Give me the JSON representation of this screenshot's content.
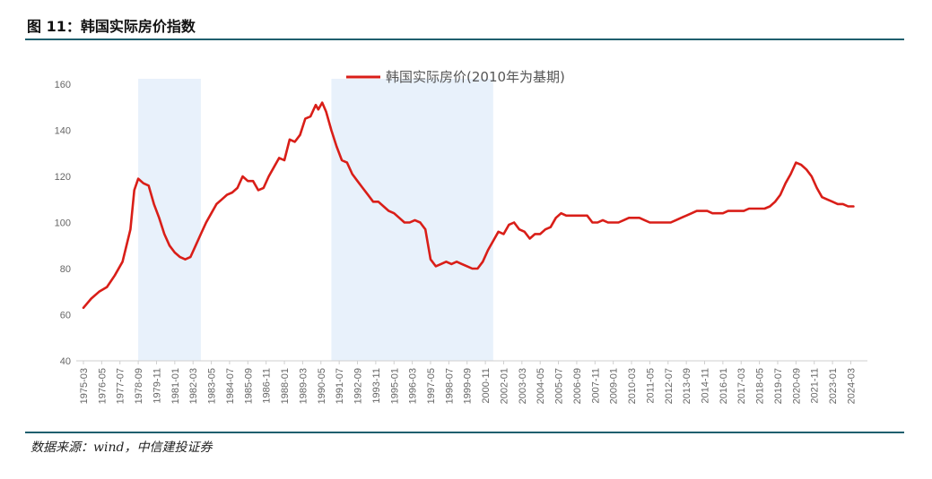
{
  "header": {
    "title": "图 11：韩国实际房价指数"
  },
  "footer": {
    "source": "数据来源：wind，中信建投证券"
  },
  "colors": {
    "line": "#d91e18",
    "band": "#e8f1fb",
    "rule": "#1f5f6e",
    "grid": "#e3e3e3"
  },
  "chart_data": {
    "type": "line",
    "title": "",
    "xlabel": "",
    "ylabel": "",
    "ylim": [
      40,
      160
    ],
    "yticks": [
      40,
      60,
      80,
      100,
      120,
      140,
      160
    ],
    "xlim": [
      "1975-03",
      "2025-01"
    ],
    "xticks": [
      "1975-03",
      "1976-05",
      "1977-07",
      "1978-09",
      "1979-11",
      "1981-01",
      "1982-03",
      "1983-05",
      "1984-07",
      "1985-09",
      "1986-11",
      "1988-01",
      "1989-03",
      "1990-05",
      "1991-07",
      "1992-09",
      "1993-11",
      "1995-01",
      "1996-03",
      "1997-05",
      "1998-07",
      "1999-09",
      "2000-11",
      "2002-01",
      "2003-03",
      "2004-05",
      "2005-07",
      "2006-09",
      "2007-11",
      "2009-01",
      "2010-03",
      "2011-05",
      "2012-07",
      "2013-09",
      "2014-11",
      "2016-01",
      "2017-03",
      "2018-05",
      "2019-07",
      "2020-09",
      "2021-11",
      "2023-01",
      "2024-03"
    ],
    "legend": {
      "position": "top",
      "label": "韩国实际房价(2010年为基期)"
    },
    "grid": false,
    "shaded_periods": [
      {
        "start": "1978-09",
        "end": "1982-09"
      },
      {
        "start": "1991-01",
        "end": "2001-05"
      }
    ],
    "series": [
      {
        "name": "韩国实际房价(2010年为基期)",
        "points": [
          [
            "1975-03",
            63
          ],
          [
            "1975-09",
            67
          ],
          [
            "1976-03",
            70
          ],
          [
            "1976-09",
            72
          ],
          [
            "1977-03",
            77
          ],
          [
            "1977-09",
            83
          ],
          [
            "1978-03",
            97
          ],
          [
            "1978-06",
            114
          ],
          [
            "1978-09",
            119
          ],
          [
            "1979-01",
            117
          ],
          [
            "1979-05",
            116
          ],
          [
            "1979-09",
            108
          ],
          [
            "1980-01",
            102
          ],
          [
            "1980-05",
            95
          ],
          [
            "1980-09",
            90
          ],
          [
            "1981-01",
            87
          ],
          [
            "1981-05",
            85
          ],
          [
            "1981-09",
            84
          ],
          [
            "1982-01",
            85
          ],
          [
            "1982-05",
            90
          ],
          [
            "1982-09",
            95
          ],
          [
            "1983-01",
            100
          ],
          [
            "1983-05",
            104
          ],
          [
            "1983-09",
            108
          ],
          [
            "1984-01",
            110
          ],
          [
            "1984-05",
            112
          ],
          [
            "1984-09",
            113
          ],
          [
            "1985-01",
            115
          ],
          [
            "1985-05",
            120
          ],
          [
            "1985-09",
            118
          ],
          [
            "1986-01",
            118
          ],
          [
            "1986-05",
            114
          ],
          [
            "1986-09",
            115
          ],
          [
            "1987-01",
            120
          ],
          [
            "1987-05",
            124
          ],
          [
            "1987-09",
            128
          ],
          [
            "1988-01",
            127
          ],
          [
            "1988-05",
            136
          ],
          [
            "1988-09",
            135
          ],
          [
            "1989-01",
            138
          ],
          [
            "1989-05",
            145
          ],
          [
            "1989-09",
            146
          ],
          [
            "1990-01",
            151
          ],
          [
            "1990-03",
            149
          ],
          [
            "1990-06",
            152
          ],
          [
            "1990-09",
            148
          ],
          [
            "1991-01",
            140
          ],
          [
            "1991-05",
            133
          ],
          [
            "1991-09",
            127
          ],
          [
            "1992-01",
            126
          ],
          [
            "1992-05",
            121
          ],
          [
            "1992-09",
            118
          ],
          [
            "1993-01",
            115
          ],
          [
            "1993-05",
            112
          ],
          [
            "1993-09",
            109
          ],
          [
            "1994-01",
            109
          ],
          [
            "1994-05",
            107
          ],
          [
            "1994-09",
            105
          ],
          [
            "1995-01",
            104
          ],
          [
            "1995-05",
            102
          ],
          [
            "1995-09",
            100
          ],
          [
            "1996-01",
            100
          ],
          [
            "1996-05",
            101
          ],
          [
            "1996-09",
            100
          ],
          [
            "1997-01",
            97
          ],
          [
            "1997-05",
            84
          ],
          [
            "1997-09",
            81
          ],
          [
            "1998-01",
            82
          ],
          [
            "1998-05",
            83
          ],
          [
            "1998-09",
            82
          ],
          [
            "1999-01",
            83
          ],
          [
            "1999-05",
            82
          ],
          [
            "1999-09",
            81
          ],
          [
            "2000-01",
            80
          ],
          [
            "2000-05",
            80
          ],
          [
            "2000-09",
            83
          ],
          [
            "2001-01",
            88
          ],
          [
            "2001-05",
            92
          ],
          [
            "2001-09",
            96
          ],
          [
            "2002-01",
            95
          ],
          [
            "2002-05",
            99
          ],
          [
            "2002-09",
            100
          ],
          [
            "2003-01",
            97
          ],
          [
            "2003-05",
            96
          ],
          [
            "2003-09",
            93
          ],
          [
            "2004-01",
            95
          ],
          [
            "2004-05",
            95
          ],
          [
            "2004-09",
            97
          ],
          [
            "2005-01",
            98
          ],
          [
            "2005-05",
            102
          ],
          [
            "2005-09",
            104
          ],
          [
            "2006-01",
            103
          ],
          [
            "2006-05",
            103
          ],
          [
            "2006-09",
            103
          ],
          [
            "2007-01",
            103
          ],
          [
            "2007-05",
            103
          ],
          [
            "2007-09",
            100
          ],
          [
            "2008-01",
            100
          ],
          [
            "2008-05",
            101
          ],
          [
            "2008-09",
            100
          ],
          [
            "2009-01",
            100
          ],
          [
            "2009-05",
            100
          ],
          [
            "2009-09",
            101
          ],
          [
            "2010-01",
            102
          ],
          [
            "2010-05",
            102
          ],
          [
            "2010-09",
            102
          ],
          [
            "2011-01",
            101
          ],
          [
            "2011-05",
            100
          ],
          [
            "2011-09",
            100
          ],
          [
            "2012-01",
            100
          ],
          [
            "2012-05",
            100
          ],
          [
            "2012-09",
            100
          ],
          [
            "2013-01",
            101
          ],
          [
            "2013-05",
            102
          ],
          [
            "2013-09",
            103
          ],
          [
            "2014-01",
            104
          ],
          [
            "2014-05",
            105
          ],
          [
            "2014-09",
            105
          ],
          [
            "2015-01",
            105
          ],
          [
            "2015-05",
            104
          ],
          [
            "2015-09",
            104
          ],
          [
            "2016-01",
            104
          ],
          [
            "2016-05",
            105
          ],
          [
            "2016-09",
            105
          ],
          [
            "2017-01",
            105
          ],
          [
            "2017-05",
            105
          ],
          [
            "2017-09",
            106
          ],
          [
            "2018-01",
            106
          ],
          [
            "2018-05",
            106
          ],
          [
            "2018-09",
            106
          ],
          [
            "2019-01",
            107
          ],
          [
            "2019-05",
            109
          ],
          [
            "2019-09",
            112
          ],
          [
            "2020-01",
            117
          ],
          [
            "2020-05",
            121
          ],
          [
            "2020-09",
            126
          ],
          [
            "2021-01",
            125
          ],
          [
            "2021-05",
            123
          ],
          [
            "2021-09",
            120
          ],
          [
            "2022-01",
            115
          ],
          [
            "2022-05",
            111
          ],
          [
            "2022-09",
            110
          ],
          [
            "2023-01",
            109
          ],
          [
            "2023-05",
            108
          ],
          [
            "2023-09",
            108
          ],
          [
            "2024-01",
            107
          ],
          [
            "2024-05",
            107
          ]
        ]
      }
    ]
  }
}
